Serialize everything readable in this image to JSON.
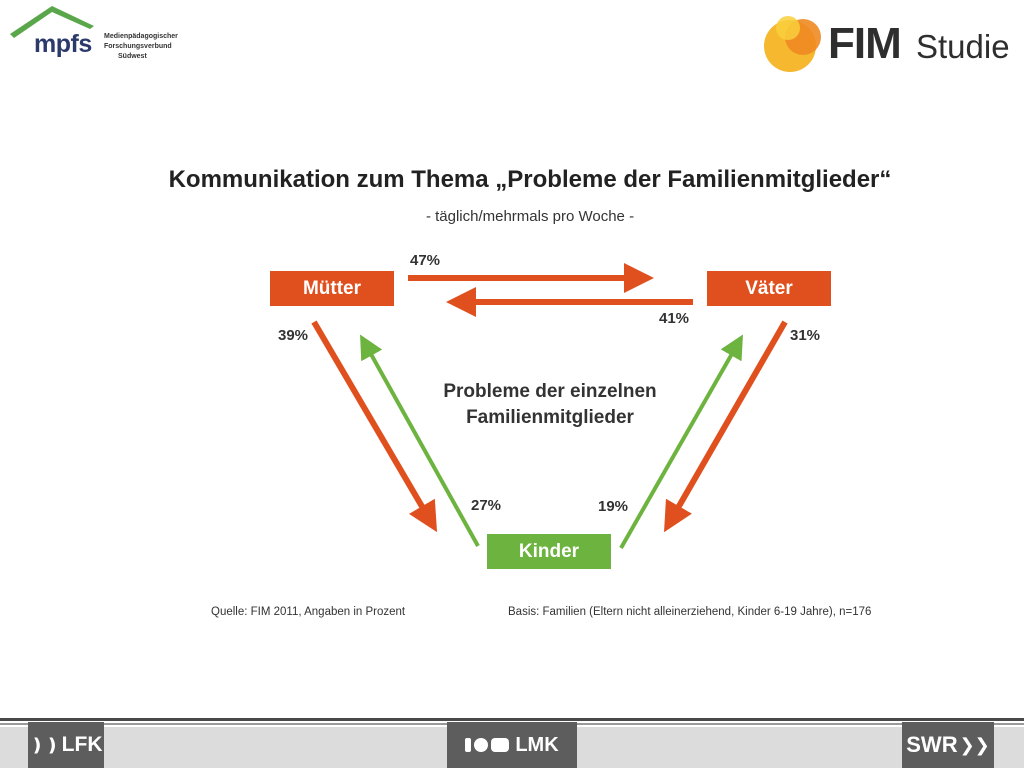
{
  "header": {
    "left_logo": {
      "name": "mpfs",
      "subtitle_lines": [
        "Medienpädagogischer",
        "Forschungsverbund",
        "Südwest"
      ]
    },
    "right_logo": {
      "word": "FIM",
      "suffix": "Studie"
    }
  },
  "diagram": {
    "title": "Kommunikation zum Thema „Probleme der Familienmitglieder“",
    "subtitle": "- täglich/mehrmals pro Woche -",
    "center_label_line1": "Probleme der einzelnen",
    "center_label_line2": "Familienmitglieder",
    "nodes": {
      "mothers": "Mütter",
      "fathers": "Väter",
      "children": "Kinder"
    },
    "edges": [
      {
        "from": "Mütter",
        "to": "Väter",
        "value": "47%"
      },
      {
        "from": "Väter",
        "to": "Mütter",
        "value": "41%"
      },
      {
        "from": "Mütter",
        "to": "Kinder",
        "value": "39%"
      },
      {
        "from": "Kinder",
        "to": "Mütter",
        "value": "27%"
      },
      {
        "from": "Väter",
        "to": "Kinder",
        "value": "31%"
      },
      {
        "from": "Kinder",
        "to": "Väter",
        "value": "19%"
      }
    ],
    "colors": {
      "parents": "#e0501e",
      "children": "#6db33f"
    }
  },
  "footer": {
    "source": "Quelle: FIM 2011,  Angaben in Prozent",
    "basis": "Basis: Familien (Eltern nicht alleinerziehend, Kinder 6-19 Jahre), n=176"
  },
  "partners": [
    "LFK",
    "LMK",
    "SWR"
  ]
}
